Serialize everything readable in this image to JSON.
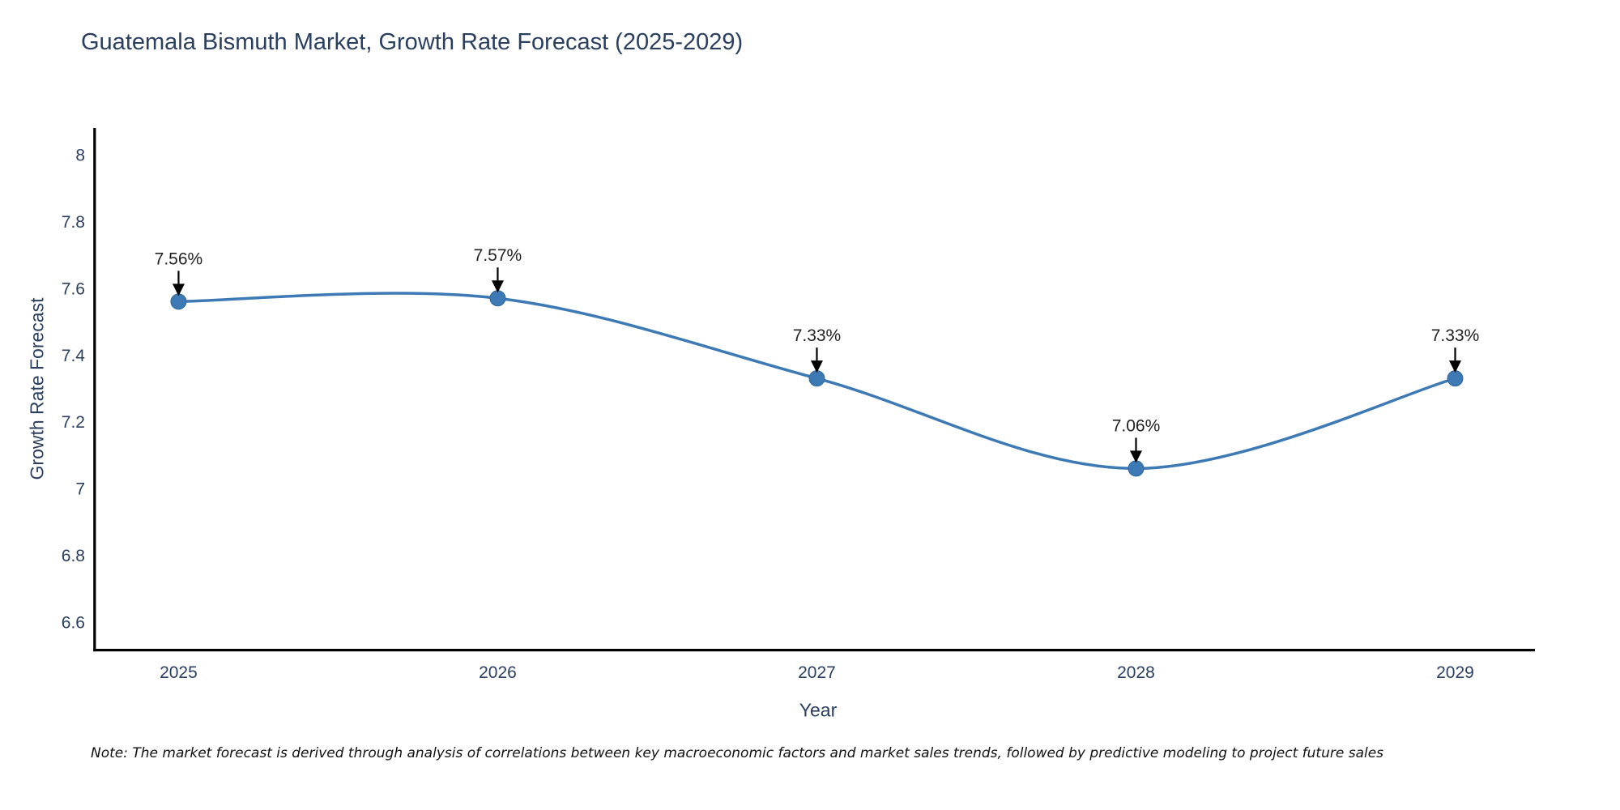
{
  "chart_data": {
    "type": "line",
    "title": "Guatemala Bismuth Market, Growth Rate Forecast (2025-2029)",
    "xlabel": "Year",
    "ylabel": "Growth Rate Forecast",
    "note": "Note: The market forecast is derived through analysis of correlations between key macroeconomic factors and market sales trends, followed by predictive modeling to project future sales",
    "x": [
      2025,
      2026,
      2027,
      2028,
      2029
    ],
    "xtick_labels": [
      "2025",
      "2026",
      "2027",
      "2028",
      "2029"
    ],
    "series": [
      {
        "name": "Growth Rate Forecast",
        "values": [
          7.56,
          7.57,
          7.33,
          7.06,
          7.33
        ]
      }
    ],
    "point_labels": [
      "7.56%",
      "7.57%",
      "7.33%",
      "7.06%",
      "7.33%"
    ],
    "yticks": [
      6.6,
      6.8,
      7.0,
      7.2,
      7.4,
      7.6,
      7.8,
      8.0
    ],
    "ytick_labels": [
      "6.6",
      "6.8",
      "7",
      "7.2",
      "7.4",
      "7.6",
      "7.8",
      "8"
    ],
    "xlim": [
      2024.74,
      2029.25
    ],
    "ylim": [
      6.52,
      8.08
    ],
    "grid": false,
    "legend": false,
    "line_shape": "spline",
    "colors": {
      "line": "#3d7ab5",
      "marker": "#3d7ab5",
      "marker_edge": "#2f6698",
      "arrow": "#000000",
      "axis": "#000000",
      "title": "#2a3f5f",
      "tick": "#2a3f5f",
      "annotation": "#222222",
      "note": "#111111",
      "background": "#ffffff"
    }
  }
}
